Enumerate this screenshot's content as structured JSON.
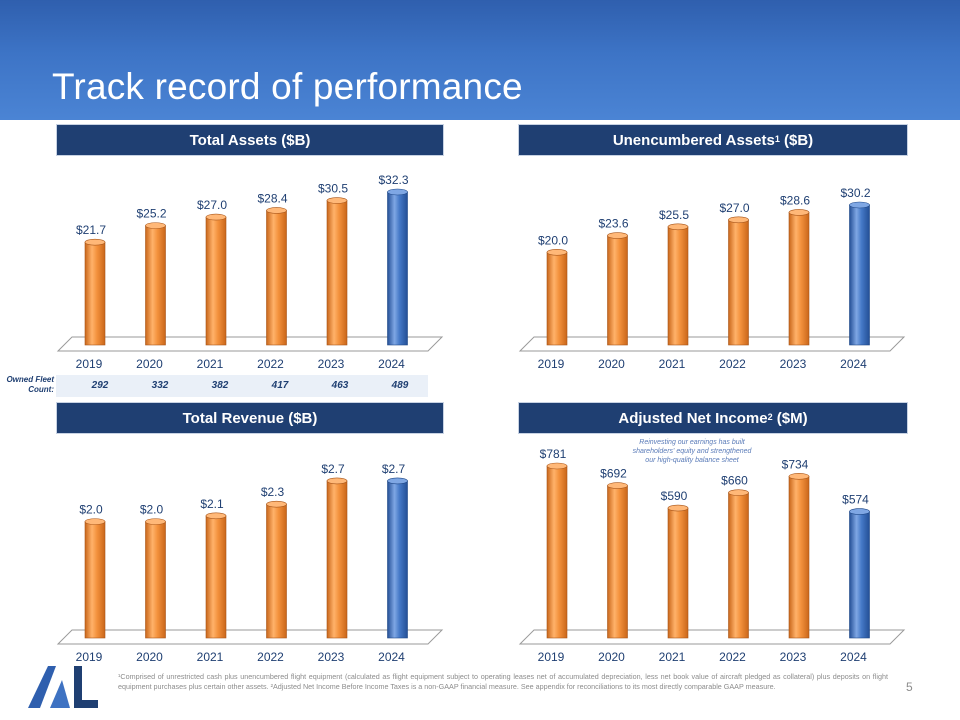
{
  "title": "Track record of performance",
  "colors": {
    "orange": "#f08a32",
    "blue": "#3e72c2",
    "navy": "#1f3f72"
  },
  "panels": {
    "total_assets": {
      "title": "Total Assets ($B)"
    },
    "unencumbered": {
      "title_main": "Unencumbered Assets",
      "title_sup": "1",
      "title_tail": " ($B)"
    },
    "revenue": {
      "title": "Total Revenue ($B)"
    },
    "net_income": {
      "title_main": "Adjusted Net Income",
      "title_sup": "2",
      "title_tail": " ($M)"
    }
  },
  "fleet": {
    "label": "Owned Fleet Count:",
    "values": [
      "292",
      "332",
      "382",
      "417",
      "463",
      "489"
    ]
  },
  "annotation": "Reinvesting our earnings has built shareholders' equity and strengthened our high-quality balance sheet",
  "footnote": "¹Comprised of unrestricted cash plus unencumbered flight equipment (calculated as flight equipment subject to operating leases net of accumulated depreciation, less net book value of aircraft pledged as collateral) plus deposits on flight equipment purchases plus certain other assets. ²Adjusted Net Income Before Income Taxes is a non-GAAP financial measure. See appendix for reconciliations to its most directly comparable GAAP measure.",
  "page_number": "5",
  "chart_data": [
    {
      "id": "total_assets",
      "type": "bar",
      "title": "Total Assets ($B)",
      "categories": [
        "2019",
        "2020",
        "2021",
        "2022",
        "2023",
        "2024"
      ],
      "values": [
        21.7,
        25.2,
        27.0,
        28.4,
        30.5,
        32.3
      ],
      "labels": [
        "$21.7",
        "$25.2",
        "$27.0",
        "$28.4",
        "$30.5",
        "$32.3"
      ],
      "ylim": [
        0,
        32.3
      ],
      "highlight_last": true
    },
    {
      "id": "unencumbered",
      "type": "bar",
      "title": "Unencumbered Assets1 ($B)",
      "categories": [
        "2019",
        "2020",
        "2021",
        "2022",
        "2023",
        "2024"
      ],
      "values": [
        20.0,
        23.6,
        25.5,
        27.0,
        28.6,
        30.2
      ],
      "labels": [
        "$20.0",
        "$23.6",
        "$25.5",
        "$27.0",
        "$28.6",
        "$30.2"
      ],
      "ylim": [
        0,
        30.2
      ],
      "highlight_last": true
    },
    {
      "id": "revenue",
      "type": "bar",
      "title": "Total Revenue ($B)",
      "categories": [
        "2019",
        "2020",
        "2021",
        "2022",
        "2023",
        "2024"
      ],
      "values": [
        2.0,
        2.0,
        2.1,
        2.3,
        2.7,
        2.7
      ],
      "labels": [
        "$2.0",
        "$2.0",
        "$2.1",
        "$2.3",
        "$2.7",
        "$2.7"
      ],
      "ylim": [
        0,
        2.75
      ],
      "highlight_last": true
    },
    {
      "id": "net_income",
      "type": "bar",
      "title": "Adjusted Net Income2 ($M)",
      "categories": [
        "2019",
        "2020",
        "2021",
        "2022",
        "2023",
        "2024"
      ],
      "values": [
        781,
        692,
        590,
        660,
        734,
        574
      ],
      "labels": [
        "$781",
        "$692",
        "$590",
        "$660",
        "$734",
        "$574"
      ],
      "ylim": [
        0,
        781
      ],
      "highlight_last": true
    }
  ]
}
